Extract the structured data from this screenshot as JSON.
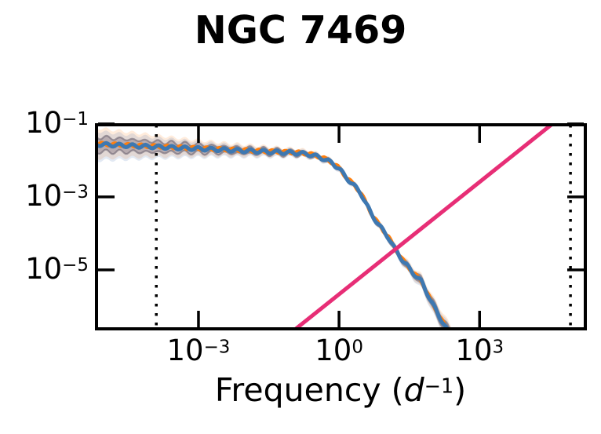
{
  "chart_data": {
    "type": "line",
    "title": "NGC 7469",
    "xlabel": {
      "prefix": "Frequency (",
      "symbol": "d",
      "exponent": "−1",
      "suffix": ")"
    },
    "x_scale": "log",
    "y_scale": "log",
    "xlim_log10": [
      -5.21,
      5.29
    ],
    "ylim_log10": [
      -6.66,
      -0.98
    ],
    "grid": false,
    "legend": "none",
    "x_ticks": [
      {
        "value_log10": -3,
        "base": "10",
        "exp": "−3"
      },
      {
        "value_log10": 0,
        "base": "10",
        "exp": "0"
      },
      {
        "value_log10": 3,
        "base": "10",
        "exp": "3"
      }
    ],
    "y_ticks": [
      {
        "value_log10": -1,
        "base": "10",
        "exp": "−1"
      },
      {
        "value_log10": -3,
        "base": "10",
        "exp": "−3"
      },
      {
        "value_log10": -5,
        "base": "10",
        "exp": "−5"
      }
    ],
    "series": [
      {
        "name": "psd-median",
        "color": "#3e78b1",
        "width": 5,
        "points_log10": [
          [
            -5.25,
            -1.555
          ],
          [
            -4.4,
            -1.6
          ],
          [
            -3.6,
            -1.645
          ],
          [
            -2.8,
            -1.69
          ],
          [
            -2.0,
            -1.735
          ],
          [
            -1.3,
            -1.775
          ],
          [
            -0.85,
            -1.8
          ],
          [
            -0.6,
            -1.845
          ],
          [
            -0.45,
            -1.9
          ],
          [
            -0.3,
            -1.97
          ],
          [
            -0.15,
            -2.07
          ],
          [
            0.0,
            -2.22
          ],
          [
            0.13,
            -2.44
          ],
          [
            0.3,
            -2.66
          ],
          [
            0.47,
            -2.91
          ],
          [
            0.69,
            -3.47
          ],
          [
            0.89,
            -3.84
          ],
          [
            1.06,
            -4.12
          ],
          [
            1.19,
            -4.42
          ],
          [
            1.36,
            -4.74
          ],
          [
            1.56,
            -5.06
          ],
          [
            1.76,
            -5.32
          ],
          [
            2.0,
            -5.95
          ],
          [
            2.28,
            -6.59
          ],
          [
            2.5,
            -7.1
          ]
        ],
        "wiggle": {
          "amplitude": 0.045,
          "wavelength": 0.28
        }
      },
      {
        "name": "psd-secondary-model",
        "color": "#ff7f0e",
        "width": 4,
        "offset_log10": 0.015,
        "wiggle_phase": 2.1
      },
      {
        "name": "noise-power-line",
        "color": "#e72e76",
        "width": 5,
        "points_log10": [
          [
            -0.955,
            -6.65
          ],
          [
            4.57,
            -0.98
          ]
        ]
      }
    ],
    "uncertainty_band": {
      "halfwidth_log10": [
        [
          -5.25,
          0.46
        ],
        [
          -4.5,
          0.38
        ],
        [
          -3.5,
          0.28
        ],
        [
          -2.5,
          0.2
        ],
        [
          -1.5,
          0.145
        ],
        [
          -0.8,
          0.115
        ],
        [
          -0.2,
          0.095
        ],
        [
          0.4,
          0.085
        ],
        [
          1.0,
          0.11
        ],
        [
          1.5,
          0.16
        ],
        [
          2.0,
          0.23
        ],
        [
          2.35,
          0.3
        ]
      ],
      "inner_ratio": 0.45,
      "outer_orange_fill": "rgba(255,136,40,0.16)",
      "outer_blue_fill": "rgba(60,110,175,0.15)",
      "inner_fill": "rgba(115,100,115,0.38)",
      "inner_edge_stroke": "rgba(100,92,108,0.55)"
    },
    "vlines": {
      "style": "dotted",
      "color": "#000000",
      "width": 3.5,
      "x_log10": [
        -3.9,
        4.94
      ]
    },
    "frame": {
      "color": "#000000",
      "width": 4,
      "tick_length": 21,
      "tick_width": 3.5,
      "tick_direction": "in"
    }
  }
}
